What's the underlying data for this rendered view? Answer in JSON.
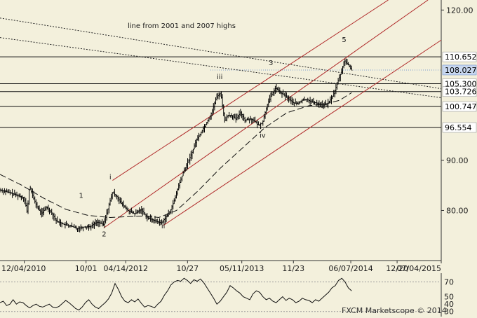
{
  "chart_data": [
    {
      "type": "line",
      "subtype": "price-bars",
      "title": "",
      "annotation": "line from 2001 and 2007 highs",
      "ylim": [
        70,
        122
      ],
      "y_ticks": [
        {
          "value": 120,
          "label": "120.00"
        },
        {
          "value": 90,
          "label": "90.00"
        },
        {
          "value": 80,
          "label": "80.00"
        }
      ],
      "x_ticks": [
        {
          "pos": 0.055,
          "label": "12/04/2010"
        },
        {
          "pos": 0.195,
          "label": "10/01"
        },
        {
          "pos": 0.285,
          "label": "04/14/2012"
        },
        {
          "pos": 0.425,
          "label": "10/27"
        },
        {
          "pos": 0.548,
          "label": "05/11/2013"
        },
        {
          "pos": 0.665,
          "label": "11/23"
        },
        {
          "pos": 0.795,
          "label": "06/07/2014"
        },
        {
          "pos": 0.9,
          "label": "12/20"
        },
        {
          "pos": 1.0,
          "label": "07/04/2015"
        }
      ],
      "levels": [
        {
          "value": 110.652,
          "label": "110.652",
          "highlight": false
        },
        {
          "value": 108.027,
          "label": "108.027",
          "highlight": true
        },
        {
          "value": 105.3,
          "label": "105.300",
          "highlight": false
        },
        {
          "value": 103.726,
          "label": "103.726",
          "highlight": false
        },
        {
          "value": 100.747,
          "label": "100.747",
          "highlight": false
        },
        {
          "value": 96.554,
          "label": "96.554",
          "highlight": false
        }
      ],
      "wave_labels": [
        {
          "label": "1",
          "x": 0.184,
          "y": 82.5
        },
        {
          "label": "2",
          "x": 0.236,
          "y": 74.8
        },
        {
          "label": "i",
          "x": 0.25,
          "y": 86.2
        },
        {
          "label": "ii",
          "x": 0.37,
          "y": 76.4
        },
        {
          "label": "iii",
          "x": 0.498,
          "y": 106.2
        },
        {
          "label": "3",
          "x": 0.614,
          "y": 109.0
        },
        {
          "label": "iv",
          "x": 0.595,
          "y": 94.5
        },
        {
          "label": "5",
          "x": 0.78,
          "y": 113.6
        }
      ],
      "series": [
        {
          "style": "price",
          "points": [
            [
              0.0,
              84.1
            ],
            [
              0.02,
              83.6
            ],
            [
              0.04,
              83.0
            ],
            [
              0.055,
              82.5
            ],
            [
              0.062,
              79.5
            ],
            [
              0.067,
              85.0
            ],
            [
              0.075,
              82.7
            ],
            [
              0.085,
              80.5
            ],
            [
              0.095,
              79.4
            ],
            [
              0.105,
              80.7
            ],
            [
              0.115,
              79.8
            ],
            [
              0.128,
              77.9
            ],
            [
              0.145,
              77.2
            ],
            [
              0.16,
              76.9
            ],
            [
              0.175,
              76.4
            ],
            [
              0.19,
              76.7
            ],
            [
              0.205,
              76.8
            ],
            [
              0.22,
              77.7
            ],
            [
              0.235,
              77.2
            ],
            [
              0.245,
              80.5
            ],
            [
              0.255,
              83.6
            ],
            [
              0.265,
              82.8
            ],
            [
              0.275,
              81.4
            ],
            [
              0.29,
              80.0
            ],
            [
              0.305,
              79.3
            ],
            [
              0.32,
              80.2
            ],
            [
              0.335,
              78.5
            ],
            [
              0.35,
              78.0
            ],
            [
              0.365,
              77.5
            ],
            [
              0.375,
              78.5
            ],
            [
              0.385,
              79.7
            ],
            [
              0.395,
              82.0
            ],
            [
              0.405,
              85.0
            ],
            [
              0.415,
              87.5
            ],
            [
              0.425,
              89.5
            ],
            [
              0.435,
              91.5
            ],
            [
              0.445,
              94.0
            ],
            [
              0.455,
              95.5
            ],
            [
              0.465,
              97.0
            ],
            [
              0.48,
              99.5
            ],
            [
              0.49,
              102.5
            ],
            [
              0.5,
              103.5
            ],
            [
              0.505,
              100.5
            ],
            [
              0.51,
              97.5
            ],
            [
              0.515,
              99.0
            ],
            [
              0.525,
              99.0
            ],
            [
              0.535,
              98.2
            ],
            [
              0.545,
              99.5
            ],
            [
              0.555,
              98.0
            ],
            [
              0.565,
              98.3
            ],
            [
              0.575,
              98.0
            ],
            [
              0.585,
              97.0
            ],
            [
              0.595,
              97.5
            ],
            [
              0.605,
              101.0
            ],
            [
              0.615,
              103.0
            ],
            [
              0.625,
              104.5
            ],
            [
              0.635,
              103.5
            ],
            [
              0.645,
              103.0
            ],
            [
              0.655,
              102.2
            ],
            [
              0.665,
              101.5
            ],
            [
              0.675,
              101.3
            ],
            [
              0.685,
              102.0
            ],
            [
              0.695,
              102.2
            ],
            [
              0.705,
              101.7
            ],
            [
              0.715,
              101.5
            ],
            [
              0.725,
              101.2
            ],
            [
              0.735,
              101.0
            ],
            [
              0.745,
              101.5
            ],
            [
              0.755,
              103.0
            ],
            [
              0.765,
              105.5
            ],
            [
              0.775,
              108.0
            ],
            [
              0.78,
              110.0
            ],
            [
              0.79,
              109.0
            ],
            [
              0.797,
              108.0
            ]
          ]
        },
        {
          "style": "moving-average",
          "points": [
            [
              0.0,
              87.2
            ],
            [
              0.05,
              85.0
            ],
            [
              0.1,
              82.4
            ],
            [
              0.15,
              80.2
            ],
            [
              0.2,
              79.0
            ],
            [
              0.25,
              78.6
            ],
            [
              0.3,
              78.8
            ],
            [
              0.33,
              78.9
            ],
            [
              0.36,
              78.6
            ],
            [
              0.4,
              80.0
            ],
            [
              0.45,
              84.0
            ],
            [
              0.5,
              88.5
            ],
            [
              0.55,
              92.5
            ],
            [
              0.6,
              96.5
            ],
            [
              0.65,
              99.5
            ],
            [
              0.7,
              100.9
            ],
            [
              0.74,
              101.3
            ],
            [
              0.77,
              102.0
            ],
            [
              0.797,
              103.5
            ]
          ]
        }
      ],
      "trendlines": [
        {
          "style": "dotted",
          "from": [
            0.0,
            118.4
          ],
          "to": [
            1.0,
            104.3
          ]
        },
        {
          "style": "dotted",
          "from": [
            0.0,
            114.5
          ],
          "to": [
            1.0,
            102.5
          ]
        },
        {
          "style": "channel",
          "from": [
            0.255,
            86.0
          ],
          "to": [
            0.88,
            122.0
          ]
        },
        {
          "style": "channel",
          "from": [
            0.235,
            76.5
          ],
          "to": [
            0.97,
            122.0
          ]
        },
        {
          "style": "channel",
          "from": [
            0.37,
            77.0
          ],
          "to": [
            1.0,
            114.0
          ]
        }
      ]
    },
    {
      "type": "line",
      "title": "",
      "ylim": [
        25,
        80
      ],
      "y_ticks": [
        {
          "value": 70,
          "label": "70"
        },
        {
          "value": 50,
          "label": "50"
        },
        {
          "value": 40,
          "label": "40"
        },
        {
          "value": 30,
          "label": "30"
        }
      ],
      "reference_lines": [
        70,
        30
      ],
      "series": [
        {
          "values": [
            42,
            44,
            38,
            40,
            46,
            40,
            43,
            42,
            38,
            35,
            38,
            40,
            37,
            36,
            38,
            40,
            36,
            35,
            37,
            41,
            45,
            42,
            38,
            34,
            32,
            36,
            42,
            46,
            40,
            36,
            34,
            38,
            42,
            47,
            55,
            68,
            60,
            50,
            44,
            42,
            46,
            43,
            47,
            41,
            36,
            38,
            37,
            35,
            40,
            44,
            52,
            58,
            66,
            70,
            72,
            71,
            75,
            72,
            68,
            73,
            71,
            74,
            69,
            62,
            55,
            48,
            40,
            44,
            50,
            56,
            65,
            62,
            58,
            55,
            50,
            48,
            46,
            54,
            58,
            56,
            50,
            46,
            48,
            44,
            42,
            46,
            50,
            45,
            48,
            46,
            42,
            44,
            48,
            46,
            45,
            42,
            46,
            44,
            48,
            52,
            56,
            62,
            65,
            72,
            75,
            70,
            62,
            58
          ]
        }
      ],
      "brand": "FXCM Marketscope © 2014"
    }
  ]
}
